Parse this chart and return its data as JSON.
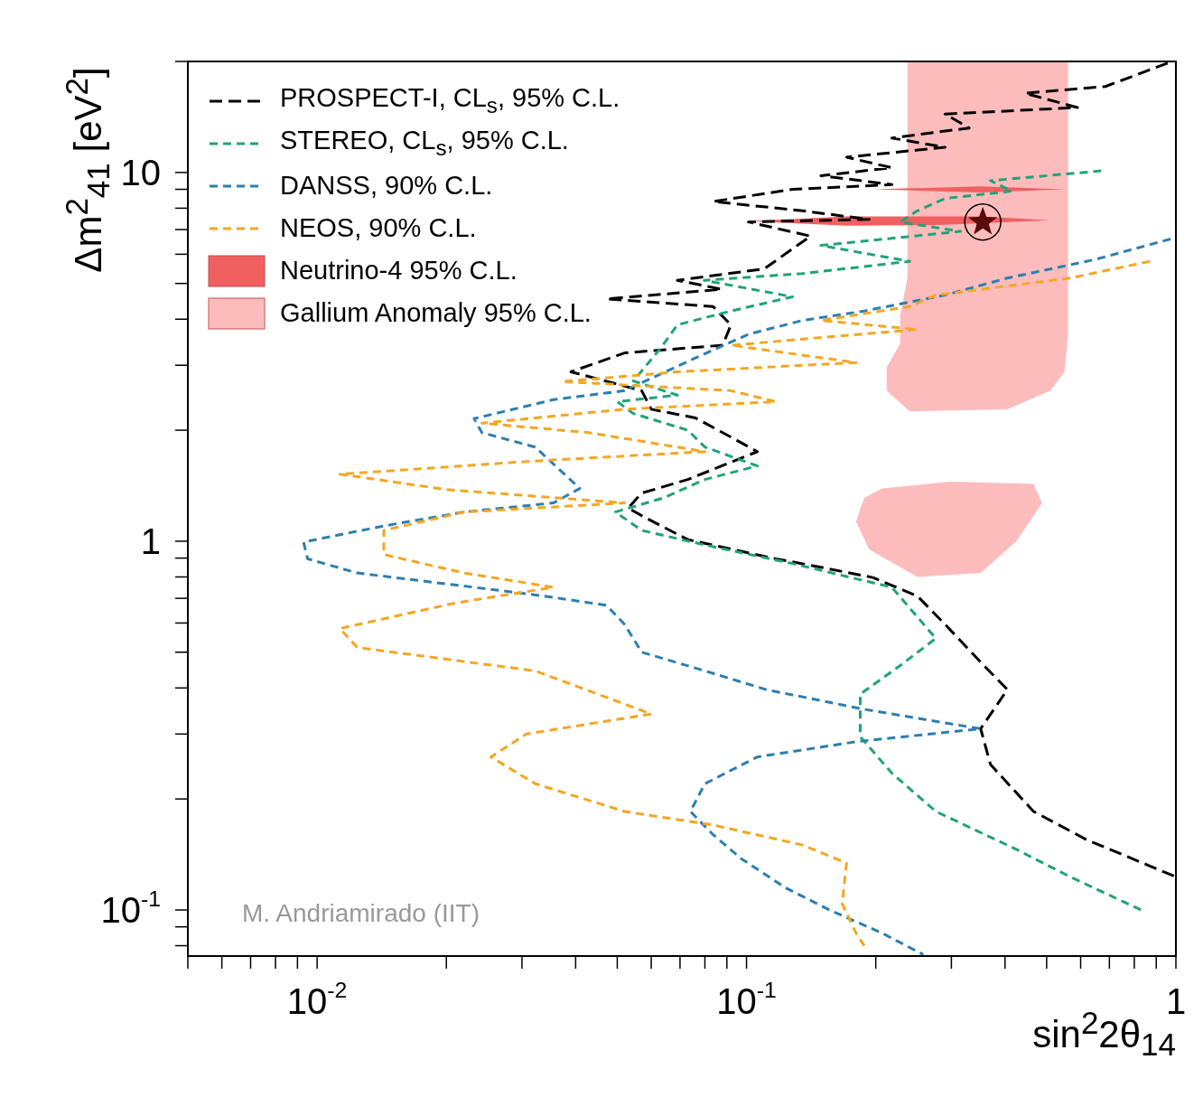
{
  "chart_data": {
    "type": "line",
    "xlabel": "sin$^{2}$2θ$_{14}$",
    "ylabel": "Δm$^{2}$$_{41}$ [eV$^{2}$]",
    "log": "xy",
    "legend": "top left",
    "annotations": [
      "M. Andriamirado (IIT)"
    ],
    "xlim": [
      0.005,
      1
    ],
    "ylim": [
      0.075,
      20
    ],
    "xticks": [
      {
        "value": 0.005,
        "label": null
      },
      {
        "value": 0.006,
        "label": null
      },
      {
        "value": 0.007,
        "label": null
      },
      {
        "value": 0.008,
        "label": null
      },
      {
        "value": 0.009,
        "label": null
      },
      {
        "value": 0.01,
        "label": "10$^{-2}$"
      },
      {
        "value": 0.02,
        "label": null
      },
      {
        "value": 0.03,
        "label": null
      },
      {
        "value": 0.04,
        "label": null
      },
      {
        "value": 0.05,
        "label": null
      },
      {
        "value": 0.06,
        "label": null
      },
      {
        "value": 0.07,
        "label": null
      },
      {
        "value": 0.08,
        "label": null
      },
      {
        "value": 0.09,
        "label": null
      },
      {
        "value": 0.1,
        "label": "10$^{-1}$"
      },
      {
        "value": 0.2,
        "label": null
      },
      {
        "value": 0.3,
        "label": null
      },
      {
        "value": 0.4,
        "label": null
      },
      {
        "value": 0.5,
        "label": null
      },
      {
        "value": 0.6,
        "label": null
      },
      {
        "value": 0.7,
        "label": null
      },
      {
        "value": 0.8,
        "label": null
      },
      {
        "value": 0.9,
        "label": null
      },
      1
    ],
    "yticks": [
      {
        "value": 0.08,
        "label": null
      },
      {
        "value": 0.09,
        "label": null
      },
      {
        "value": 0.1,
        "label": "10$^{-1}$"
      },
      {
        "value": 0.2,
        "label": null
      },
      {
        "value": 0.3,
        "label": null
      },
      {
        "value": 0.4,
        "label": null
      },
      {
        "value": 0.5,
        "label": null
      },
      {
        "value": 0.6,
        "label": null
      },
      {
        "value": 0.7,
        "label": null
      },
      {
        "value": 0.8,
        "label": null
      },
      {
        "value": 0.9,
        "label": null
      },
      1,
      {
        "value": 2,
        "label": null
      },
      {
        "value": 3,
        "label": null
      },
      {
        "value": 4,
        "label": null
      },
      {
        "value": 5,
        "label": null
      },
      {
        "value": 6,
        "label": null
      },
      {
        "value": 7,
        "label": null
      },
      {
        "value": 8,
        "label": null
      },
      {
        "value": 9,
        "label": null
      },
      10,
      {
        "value": 20,
        "label": null
      }
    ],
    "series": [
      {
        "name": "PROSPECT-I, CL$_{s}$, 95% C.L.",
        "color": "#000000",
        "line_style": "dashed",
        "x": [
          0.957,
          0.685,
          0.445,
          0.59,
          0.29,
          0.33,
          0.218,
          0.29,
          0.171,
          0.218,
          0.149,
          0.218,
          0.128,
          0.0836,
          0.135,
          0.193,
          0.101,
          0.141,
          0.11,
          0.069,
          0.0876,
          0.0472,
          0.0836,
          0.092,
          0.088,
          0.052,
          0.039,
          0.057,
          0.06,
          0.076,
          0.088,
          0.106,
          0.073,
          0.057,
          0.053,
          0.058,
          0.073,
          0.117,
          0.149,
          0.197,
          0.25,
          0.29,
          0.351,
          0.405,
          0.351,
          0.37,
          0.466,
          0.62,
          1.0
        ],
        "values": [
          19.8,
          17.1,
          16.4,
          15.0,
          14.4,
          13.2,
          12.4,
          11.7,
          11.0,
          10.3,
          9.8,
          9.27,
          9.0,
          8.34,
          7.87,
          7.46,
          7.34,
          6.72,
          5.48,
          5.1,
          4.82,
          4.54,
          4.33,
          3.86,
          3.4,
          3.24,
          2.88,
          2.56,
          2.28,
          2.16,
          1.97,
          1.75,
          1.47,
          1.35,
          1.23,
          1.16,
          1.01,
          0.896,
          0.85,
          0.797,
          0.71,
          0.595,
          0.47,
          0.396,
          0.31,
          0.248,
          0.185,
          0.155,
          0.123
        ]
      },
      {
        "name": "STEREO, CL$_{s}$, 95% C.L.",
        "color": "#1fa37a",
        "line_style": "dashed",
        "x": [
          0.67,
          0.37,
          0.415,
          0.29,
          0.25,
          0.228,
          0.315,
          0.149,
          0.24,
          0.135,
          0.0797,
          0.128,
          0.092,
          0.069,
          0.063,
          0.0545,
          0.069,
          0.05,
          0.0545,
          0.073,
          0.08,
          0.106,
          0.08,
          0.064,
          0.0495,
          0.057,
          0.08,
          0.128,
          0.218,
          0.276,
          0.228,
          0.184,
          0.184,
          0.218,
          0.276,
          0.425,
          0.567,
          0.83
        ],
        "values": [
          10.1,
          9.5,
          8.9,
          8.5,
          7.87,
          7.34,
          6.92,
          6.34,
          5.74,
          5.32,
          5.1,
          4.6,
          4.21,
          3.86,
          3.33,
          2.72,
          2.49,
          2.39,
          2.22,
          2.0,
          1.8,
          1.6,
          1.47,
          1.31,
          1.2,
          1.07,
          0.977,
          0.87,
          0.75,
          0.545,
          0.46,
          0.385,
          0.295,
          0.235,
          0.185,
          0.146,
          0.123,
          0.1
        ]
      },
      {
        "name": "DANSS, 90% C.L.",
        "color": "#2b7fb0",
        "line_style": "dashed",
        "x": [
          0.972,
          0.65,
          0.405,
          0.29,
          0.188,
          0.135,
          0.101,
          0.076,
          0.052,
          0.0355,
          0.0232,
          0.0242,
          0.0322,
          0.0409,
          0.0355,
          0.022,
          0.0143,
          0.0093,
          0.0095,
          0.0124,
          0.0232,
          0.0338,
          0.0472,
          0.052,
          0.057,
          0.08,
          0.111,
          0.188,
          0.351,
          0.18,
          0.106,
          0.08,
          0.074,
          0.0836,
          0.097,
          0.123,
          0.156,
          0.207,
          0.258
        ],
        "values": [
          6.6,
          5.81,
          5.17,
          4.65,
          4.21,
          3.97,
          3.64,
          3.14,
          2.56,
          2.42,
          2.15,
          1.97,
          1.8,
          1.39,
          1.27,
          1.2,
          1.1,
          0.995,
          0.896,
          0.82,
          0.75,
          0.71,
          0.67,
          0.595,
          0.5,
          0.445,
          0.396,
          0.35,
          0.31,
          0.286,
          0.26,
          0.22,
          0.185,
          0.16,
          0.138,
          0.115,
          0.1,
          0.0865,
          0.0757
        ]
      },
      {
        "name": "NEOS, 90% C.L.",
        "color": "#f5a623",
        "line_style": "dashed",
        "x": [
          0.87,
          0.567,
          0.276,
          0.24,
          0.149,
          0.25,
          0.092,
          0.18,
          0.069,
          0.0372,
          0.092,
          0.117,
          0.052,
          0.0242,
          0.0429,
          0.08,
          0.0322,
          0.0113,
          0.02,
          0.052,
          0.022,
          0.0143,
          0.0143,
          0.022,
          0.0355,
          0.021,
          0.0113,
          0.0124,
          0.0322,
          0.06,
          0.0307,
          0.0254,
          0.0322,
          0.052,
          0.0836,
          0.135,
          0.171,
          0.167,
          0.18,
          0.188
        ],
        "values": [
          5.74,
          5.17,
          4.65,
          4.33,
          3.97,
          3.75,
          3.4,
          3.05,
          2.88,
          2.71,
          2.56,
          2.39,
          2.28,
          2.09,
          1.97,
          1.75,
          1.65,
          1.52,
          1.38,
          1.27,
          1.2,
          1.07,
          0.92,
          0.82,
          0.75,
          0.68,
          0.58,
          0.515,
          0.445,
          0.34,
          0.3,
          0.26,
          0.22,
          0.185,
          0.17,
          0.15,
          0.134,
          0.104,
          0.0865,
          0.08
        ]
      },
      {
        "name": "Neutrino-4 95% C.L.",
        "type": "area",
        "color": "#f06060",
        "x": [
          0.197,
          0.351,
          0.55,
          0.351,
          null,
          0.101,
          0.171,
          0.351,
          0.51,
          0.28,
          0.171
        ],
        "values": [
          9.0,
          9.17,
          9.0,
          8.83,
          null,
          7.38,
          7.6,
          7.6,
          7.42,
          7.2,
          7.17
        ]
      },
      {
        "name": "Gallium Anomaly 95% C.L.",
        "type": "area",
        "color": "#fdbcbc",
        "x": [
          0.237,
          0.561,
          0.561,
          0.55,
          0.51,
          0.405,
          0.24,
          0.212,
          0.212,
          0.228,
          0.228,
          0.237,
          null,
          0.207,
          0.297,
          0.466,
          0.488,
          0.425,
          0.351,
          0.25,
          0.193,
          0.18,
          0.188
        ],
        "values": [
          20,
          20,
          3.64,
          2.88,
          2.56,
          2.28,
          2.25,
          2.56,
          2.96,
          3.43,
          4.09,
          5.17,
          null,
          1.39,
          1.45,
          1.43,
          1.27,
          1.0,
          0.82,
          0.8,
          0.95,
          1.13,
          1.31
        ]
      },
      {
        "type": "scatter",
        "marker": "star",
        "color": "#5a0a0a",
        "x": [
          0.355
        ],
        "values": [
          7.34
        ]
      }
    ]
  }
}
